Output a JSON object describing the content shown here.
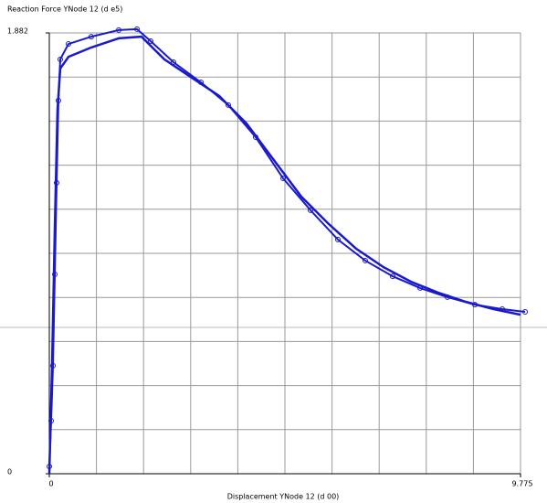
{
  "chart_data": {
    "type": "line",
    "title": "Reaction Force YNode 12 (d e5)",
    "x_label": "Displacement YNode 12 (d 00)",
    "xlim": [
      0,
      9.775
    ],
    "xticks": [
      0,
      9.775
    ],
    "ylim": [
      0,
      1.882
    ],
    "yticks": [
      0,
      1.882
    ],
    "grid": true,
    "grid_divisions": 10,
    "series": [
      {
        "color": "#1a1acc",
        "marker": "none",
        "x": [
          0,
          0.057,
          0.114,
          0.17,
          0.227,
          0.398,
          0.871,
          1.44,
          1.913,
          2.103,
          2.387,
          2.955,
          3.524,
          4.092,
          4.66,
          5.228,
          5.797,
          6.365,
          6.933,
          7.501,
          8.07,
          8.638,
          9.207,
          9.775
        ],
        "values": [
          0,
          0.461,
          1.046,
          1.554,
          1.73,
          1.78,
          1.82,
          1.859,
          1.866,
          1.827,
          1.769,
          1.691,
          1.613,
          1.495,
          1.339,
          1.183,
          1.066,
          0.961,
          0.882,
          0.82,
          0.773,
          0.734,
          0.703,
          0.679
        ]
      },
      {
        "color": "#1a1acc",
        "marker": "circle",
        "x": [
          0,
          0.038,
          0.076,
          0.114,
          0.152,
          0.189,
          0.227,
          0.398,
          0.871,
          1.44,
          1.819,
          2.103,
          2.576,
          3.145,
          3.713,
          4.281,
          4.85,
          5.418,
          5.986,
          6.554,
          7.123,
          7.691,
          8.259,
          8.828,
          9.396,
          9.87
        ],
        "values": [
          0.031,
          0.226,
          0.461,
          0.851,
          1.242,
          1.593,
          1.769,
          1.835,
          1.866,
          1.894,
          1.898,
          1.847,
          1.757,
          1.671,
          1.574,
          1.437,
          1.261,
          1.125,
          1.0,
          0.91,
          0.843,
          0.793,
          0.754,
          0.722,
          0.703,
          0.691
        ]
      }
    ]
  }
}
